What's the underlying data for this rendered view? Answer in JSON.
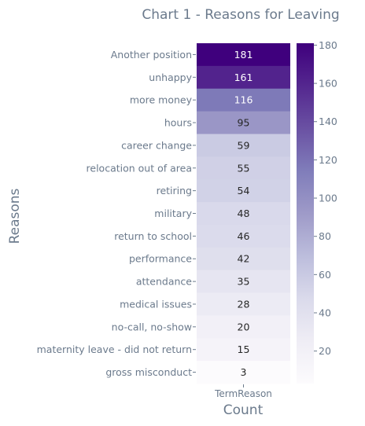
{
  "chart_data": {
    "type": "heatmap",
    "title": "Chart 1 - Reasons for Leaving",
    "ylabel": "Reasons",
    "xlabel": "Count",
    "columns": [
      "TermReason"
    ],
    "rows": [
      "Another position",
      "unhappy",
      "more money",
      "hours",
      "career change",
      "relocation out of area",
      "retiring",
      "military",
      "return to school",
      "performance",
      "attendance",
      "medical issues",
      "no-call, no-show",
      "maternity leave - did not return",
      "gross misconduct"
    ],
    "values": [
      181,
      161,
      116,
      95,
      59,
      55,
      54,
      48,
      46,
      42,
      35,
      28,
      20,
      15,
      3
    ],
    "colormap": "Purples",
    "colorbar": {
      "range": [
        3,
        181
      ],
      "ticks": [
        20,
        40,
        60,
        80,
        100,
        120,
        140,
        160,
        180
      ]
    },
    "colors": {
      "text": "#6b7a8c",
      "scale_low": "#fcfbfd",
      "scale_high": "#3f007d"
    }
  }
}
